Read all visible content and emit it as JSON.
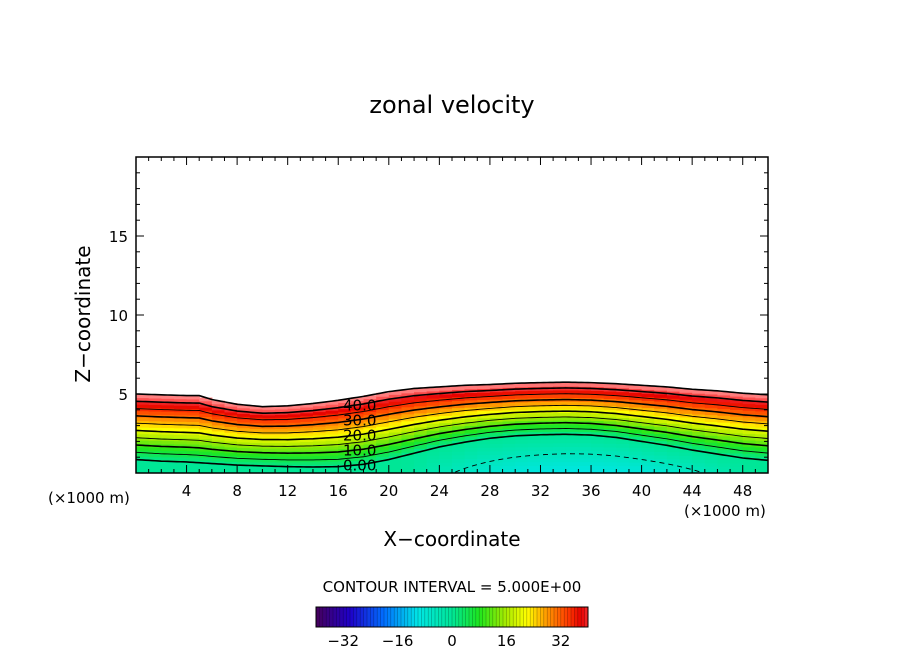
{
  "chart_data": {
    "type": "contour",
    "title": "zonal velocity",
    "xlabel": "X−coordinate",
    "ylabel": "Z−coordinate",
    "x_unit_label": "(×1000 m)",
    "z_unit_label": "(×1000 m)",
    "xlim": [
      0,
      50
    ],
    "ylim": [
      0,
      20
    ],
    "x_ticks": [
      "4",
      "8",
      "12",
      "16",
      "20",
      "24",
      "28",
      "32",
      "36",
      "40",
      "44",
      "48"
    ],
    "y_ticks": [
      "5",
      "10",
      "15"
    ],
    "contour_interval_text": "CONTOUR INTERVAL = 5.000E+00",
    "contour_labels": [
      "40.0",
      "30.0",
      "20.0",
      "10.0",
      "0.00"
    ],
    "colorbar": {
      "min": -40,
      "max": 40,
      "tick_labels": [
        "−32",
        "−16",
        "0",
        "16",
        "32"
      ],
      "tick_values": [
        -32,
        -16,
        0,
        16,
        32
      ]
    },
    "field": {
      "x": [
        0,
        2,
        4,
        5,
        6,
        8,
        10,
        12,
        14,
        16,
        18,
        20,
        22,
        24,
        26,
        28,
        30,
        32,
        34,
        36,
        38,
        40,
        42,
        44,
        46,
        48,
        50
      ],
      "top_z": [
        5.0,
        4.95,
        4.9,
        4.9,
        4.65,
        4.35,
        4.2,
        4.25,
        4.4,
        4.6,
        4.85,
        5.15,
        5.35,
        5.45,
        5.55,
        5.6,
        5.68,
        5.72,
        5.75,
        5.72,
        5.65,
        5.55,
        5.45,
        5.3,
        5.2,
        5.05,
        4.95
      ],
      "zero_z": [
        0.85,
        0.75,
        0.7,
        0.65,
        0.6,
        0.5,
        0.45,
        0.4,
        0.38,
        0.4,
        0.55,
        0.85,
        1.25,
        1.65,
        1.95,
        2.2,
        2.35,
        2.42,
        2.45,
        2.4,
        2.25,
        2.0,
        1.75,
        1.45,
        1.2,
        0.95,
        0.8
      ],
      "max_velocity": 45,
      "min_velocity": -10,
      "min_velocity_x": 35
    }
  }
}
